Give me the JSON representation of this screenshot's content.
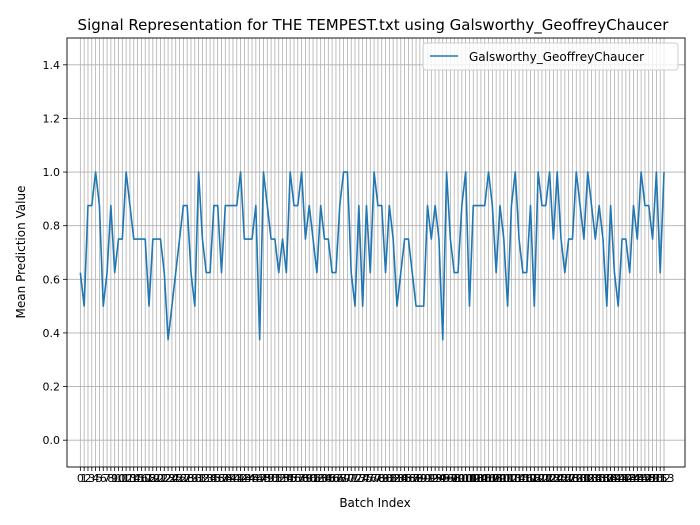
{
  "chart_data": {
    "type": "line",
    "title": "Signal Representation for THE TEMPEST.txt using Galsworthy_GeoffreyChaucer",
    "xlabel": "Batch Index",
    "ylabel": "Mean Prediction Value",
    "ylim": [
      -0.1,
      1.5
    ],
    "yticks": [
      0.0,
      0.2,
      0.4,
      0.6,
      0.8,
      1.0,
      1.2,
      1.4
    ],
    "xlim": [
      -3.5,
      158.5
    ],
    "grid": true,
    "legend": {
      "placement": "top-right"
    },
    "series": [
      {
        "name": "Galsworthy_GeoffreyChaucer",
        "color": "#1f77b4",
        "x_start": 0,
        "values": [
          0.625,
          0.5,
          0.875,
          0.875,
          1.0,
          0.875,
          0.5,
          0.625,
          0.875,
          0.625,
          0.75,
          0.75,
          1.0,
          0.875,
          0.75,
          0.75,
          0.75,
          0.75,
          0.5,
          0.75,
          0.75,
          0.75,
          0.625,
          0.375,
          0.5,
          0.625,
          0.75,
          0.875,
          0.875,
          0.625,
          0.5,
          1.0,
          0.75,
          0.625,
          0.625,
          0.875,
          0.875,
          0.625,
          0.875,
          0.875,
          0.875,
          0.875,
          1.0,
          0.75,
          0.75,
          0.75,
          0.875,
          0.375,
          1.0,
          0.875,
          0.75,
          0.75,
          0.625,
          0.75,
          0.625,
          1.0,
          0.875,
          0.875,
          1.0,
          0.75,
          0.875,
          0.75,
          0.625,
          0.875,
          0.75,
          0.75,
          0.625,
          0.625,
          0.875,
          1.0,
          1.0,
          0.625,
          0.5,
          0.875,
          0.5,
          0.875,
          0.625,
          1.0,
          0.875,
          0.875,
          0.625,
          0.875,
          0.75,
          0.5,
          0.625,
          0.75,
          0.75,
          0.625,
          0.5,
          0.5,
          0.5,
          0.875,
          0.75,
          0.875,
          0.75,
          0.375,
          1.0,
          0.75,
          0.625,
          0.625,
          0.875,
          1.0,
          0.5,
          0.875,
          0.875,
          0.875,
          0.875,
          1.0,
          0.875,
          0.625,
          0.875,
          0.75,
          0.5,
          0.875,
          1.0,
          0.75,
          0.625,
          0.625,
          0.875,
          0.5,
          1.0,
          0.875,
          0.875,
          1.0,
          0.75,
          1.0,
          0.75,
          0.625,
          0.75,
          0.75,
          1.0,
          0.875,
          0.75,
          1.0,
          0.875,
          0.75,
          0.875,
          0.75,
          0.5,
          0.875,
          0.625,
          0.5,
          0.75,
          0.75,
          0.625,
          0.875,
          0.75,
          1.0,
          0.875,
          0.875,
          0.75,
          1.0,
          0.625,
          1.0
        ]
      }
    ]
  }
}
